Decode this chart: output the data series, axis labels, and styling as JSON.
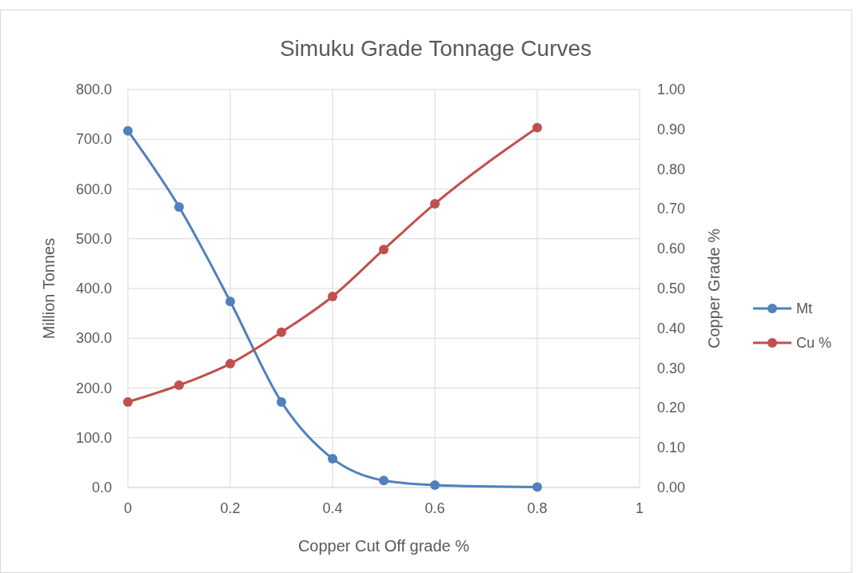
{
  "chart_data": {
    "type": "line",
    "title": "Simuku   Grade Tonnage Curves",
    "xlabel": "Copper Cut Off grade %",
    "ylabel": "Million Tonnes",
    "y2label": "Copper Grade %",
    "x": [
      0,
      0.1,
      0.2,
      0.3,
      0.4,
      0.5,
      0.6,
      0.8
    ],
    "series": [
      {
        "name": "Mt",
        "color": "#4f81bd",
        "values": [
          717,
          564,
          374,
          172,
          58,
          14,
          5,
          1
        ]
      },
      {
        "name": "Cu %",
        "color": "#c0504d",
        "axis": "y2",
        "values": [
          0.215,
          0.257,
          0.311,
          0.39,
          0.48,
          0.598,
          0.713,
          0.904
        ]
      }
    ],
    "xlim": [
      0,
      1
    ],
    "xticks": [
      0,
      0.2,
      0.4,
      0.6,
      0.8,
      1
    ],
    "ylim": [
      0,
      800
    ],
    "yticks": [
      {
        "value": 0,
        "label": "0.0"
      },
      {
        "value": 100,
        "label": "100.0"
      },
      {
        "value": 200,
        "label": "200.0"
      },
      {
        "value": 300,
        "label": "300.0"
      },
      {
        "value": 400,
        "label": "400.0"
      },
      {
        "value": 500,
        "label": "500.0"
      },
      {
        "value": 600,
        "label": "600.0"
      },
      {
        "value": 700,
        "label": "700.0"
      },
      {
        "value": 800,
        "label": "800.0"
      }
    ],
    "y2lim": [
      0,
      1
    ],
    "y2ticks": [
      {
        "value": 0,
        "label": "0.00"
      },
      {
        "value": 0.1,
        "label": "0.10"
      },
      {
        "value": 0.2,
        "label": "0.20"
      },
      {
        "value": 0.3,
        "label": "0.30"
      },
      {
        "value": 0.4,
        "label": "0.40"
      },
      {
        "value": 0.5,
        "label": "0.50"
      },
      {
        "value": 0.6,
        "label": "0.60"
      },
      {
        "value": 0.7,
        "label": "0.70"
      },
      {
        "value": 0.8,
        "label": "0.80"
      },
      {
        "value": 0.9,
        "label": "0.90"
      },
      {
        "value": 1,
        "label": "1.00"
      }
    ],
    "grid": true,
    "legend": "right",
    "marker": "circle",
    "line_style": "solid"
  }
}
